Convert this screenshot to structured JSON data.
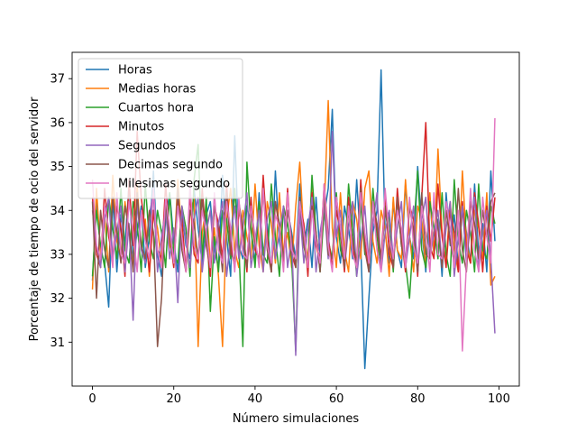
{
  "chart_data": {
    "type": "line",
    "xlabel": "Número simulaciones",
    "ylabel": "Porcentaje de tiempo de ocio del servidor",
    "xlim": [
      -5,
      105
    ],
    "ylim": [
      30.0,
      37.6
    ],
    "xticks": [
      0,
      20,
      40,
      60,
      80,
      100
    ],
    "yticks": [
      31,
      32,
      33,
      34,
      35,
      36,
      37
    ],
    "grid": false,
    "legend_position": "top-left",
    "x": [
      0,
      1,
      2,
      3,
      4,
      5,
      6,
      7,
      8,
      9,
      10,
      11,
      12,
      13,
      14,
      15,
      16,
      17,
      18,
      19,
      20,
      21,
      22,
      23,
      24,
      25,
      26,
      27,
      28,
      29,
      30,
      31,
      32,
      33,
      34,
      35,
      36,
      37,
      38,
      39,
      40,
      41,
      42,
      43,
      44,
      45,
      46,
      47,
      48,
      49,
      50,
      51,
      52,
      53,
      54,
      55,
      56,
      57,
      58,
      59,
      60,
      61,
      62,
      63,
      64,
      65,
      66,
      67,
      68,
      69,
      70,
      71,
      72,
      73,
      74,
      75,
      76,
      77,
      78,
      79,
      80,
      81,
      82,
      83,
      84,
      85,
      86,
      87,
      88,
      89,
      90,
      91,
      92,
      93,
      94,
      95,
      96,
      97,
      98,
      99
    ],
    "series": [
      {
        "name": "Horas",
        "color": "#1f77b4",
        "values": [
          32.4,
          34.2,
          33.1,
          32.8,
          31.8,
          34.3,
          32.6,
          33.9,
          33.2,
          34.6,
          32.9,
          33.5,
          34.1,
          32.7,
          33.4,
          34.9,
          33.0,
          32.5,
          33.8,
          34.4,
          33.3,
          32.6,
          34.0,
          33.2,
          32.9,
          34.5,
          33.6,
          32.8,
          33.9,
          34.2,
          33.1,
          32.7,
          34.8,
          33.4,
          32.5,
          35.7,
          33.2,
          32.9,
          34.1,
          33.6,
          32.8,
          34.4,
          33.0,
          33.7,
          32.6,
          34.9,
          33.3,
          32.8,
          34.0,
          33.5,
          32.9,
          34.6,
          33.2,
          33.8,
          32.7,
          34.3,
          33.0,
          33.9,
          34.5,
          36.3,
          33.4,
          32.8,
          34.1,
          33.6,
          32.9,
          34.7,
          33.2,
          30.4,
          32.0,
          33.5,
          34.0,
          37.2,
          33.5,
          32.8,
          34.2,
          33.1,
          32.7,
          34.6,
          33.4,
          32.9,
          35.0,
          33.6,
          32.6,
          34.3,
          33.0,
          33.8,
          32.5,
          34.4,
          33.2,
          33.9,
          32.7,
          34.1,
          33.5,
          32.8,
          34.6,
          33.0,
          33.7,
          32.6,
          34.9,
          33.3
        ]
      },
      {
        "name": "Medias horas",
        "color": "#ff7f0e",
        "values": [
          32.2,
          34.5,
          33.0,
          33.9,
          32.6,
          34.8,
          33.3,
          32.9,
          34.2,
          33.5,
          32.7,
          34.6,
          33.1,
          33.8,
          32.5,
          34.0,
          33.6,
          32.8,
          34.4,
          33.2,
          32.9,
          34.7,
          33.4,
          32.6,
          33.9,
          34.3,
          30.9,
          33.5,
          34.1,
          32.8,
          33.6,
          32.5,
          30.9,
          33.8,
          34.5,
          33.1,
          32.7,
          34.0,
          33.4,
          32.9,
          34.6,
          33.2,
          32.6,
          34.2,
          33.7,
          32.8,
          34.4,
          33.0,
          33.5,
          32.7,
          34.1,
          35.1,
          33.4,
          32.9,
          34.6,
          33.2,
          32.8,
          34.0,
          36.5,
          33.6,
          32.7,
          34.4,
          33.1,
          32.6,
          34.2,
          33.8,
          32.9,
          34.5,
          34.9,
          33.3,
          32.8,
          34.0,
          33.6,
          32.5,
          34.3,
          33.1,
          32.9,
          34.7,
          33.4,
          32.6,
          34.1,
          33.8,
          32.7,
          34.4,
          33.0,
          35.4,
          33.5,
          32.8,
          34.2,
          33.1,
          32.6,
          34.9,
          33.3,
          32.8,
          34.0,
          33.6,
          32.9,
          34.4,
          32.3,
          32.5
        ]
      },
      {
        "name": "Cuartos hora",
        "color": "#2ca02c",
        "values": [
          32.5,
          34.0,
          33.2,
          32.7,
          34.3,
          33.6,
          32.9,
          34.5,
          33.1,
          32.8,
          34.2,
          33.7,
          32.6,
          34.6,
          33.3,
          32.9,
          34.0,
          33.5,
          32.7,
          34.4,
          33.0,
          32.8,
          34.1,
          33.6,
          32.5,
          34.7,
          35.5,
          32.9,
          34.3,
          31.7,
          33.4,
          32.6,
          34.0,
          33.8,
          32.9,
          34.5,
          33.2,
          30.9,
          35.1,
          33.6,
          32.7,
          34.2,
          33.0,
          32.8,
          34.6,
          33.4,
          32.5,
          34.1,
          33.7,
          32.9,
          30.8,
          34.3,
          33.2,
          32.7,
          34.8,
          33.5,
          32.6,
          34.0,
          33.3,
          32.9,
          34.4,
          33.1,
          32.8,
          34.6,
          33.6,
          32.5,
          34.2,
          33.0,
          32.9,
          34.5,
          33.4,
          32.7,
          34.1,
          33.8,
          32.6,
          34.3,
          33.2,
          32.8,
          32.0,
          33.5,
          34.9,
          33.1,
          32.7,
          34.2,
          33.6,
          32.9,
          34.4,
          33.0,
          32.5,
          34.7,
          33.3,
          32.8,
          34.0,
          33.5,
          32.6,
          34.6,
          33.1,
          32.9,
          34.1,
          33.7
        ]
      },
      {
        "name": "Minutos",
        "color": "#d62728",
        "values": [
          34.3,
          33.0,
          32.7,
          34.5,
          33.4,
          32.9,
          34.1,
          33.6,
          32.5,
          34.7,
          33.2,
          35.8,
          34.3,
          33.5,
          32.6,
          34.0,
          33.1,
          32.9,
          34.6,
          33.4,
          32.7,
          34.2,
          33.8,
          32.6,
          34.4,
          33.0,
          32.8,
          34.5,
          33.3,
          32.5,
          34.1,
          33.7,
          32.9,
          34.6,
          33.2,
          32.7,
          34.0,
          33.5,
          32.6,
          34.3,
          33.1,
          32.9,
          34.8,
          33.4,
          32.6,
          34.2,
          33.6,
          32.8,
          34.5,
          33.0,
          32.7,
          34.1,
          33.7,
          32.5,
          34.4,
          33.2,
          32.9,
          34.6,
          33.4,
          32.7,
          34.0,
          33.5,
          32.6,
          34.3,
          33.1,
          32.8,
          34.7,
          33.3,
          32.6,
          34.2,
          33.6,
          32.9,
          34.4,
          33.0,
          32.7,
          34.5,
          33.4,
          32.6,
          34.1,
          33.8,
          32.5,
          34.3,
          36.0,
          33.2,
          32.9,
          34.6,
          33.4,
          32.7,
          34.0,
          33.5,
          32.6,
          34.2,
          33.1,
          32.8,
          34.4,
          33.7,
          32.6,
          34.1,
          33.3,
          34.3
        ]
      },
      {
        "name": "Segundos",
        "color": "#9467bd",
        "values": [
          34.0,
          33.2,
          32.7,
          33.8,
          34.3,
          32.9,
          33.5,
          34.1,
          32.6,
          33.7,
          31.5,
          34.2,
          33.1,
          32.8,
          33.9,
          34.4,
          32.6,
          33.4,
          34.0,
          32.9,
          33.6,
          31.9,
          34.1,
          33.3,
          32.7,
          33.8,
          34.3,
          32.6,
          33.5,
          34.0,
          32.8,
          33.7,
          34.2,
          32.5,
          33.4,
          34.1,
          32.9,
          33.6,
          34.4,
          32.7,
          33.3,
          34.0,
          32.6,
          33.8,
          34.2,
          32.9,
          33.5,
          34.1,
          32.7,
          33.4,
          30.7,
          34.0,
          32.8,
          33.6,
          34.3,
          32.6,
          33.5,
          34.1,
          32.9,
          35.8,
          33.4,
          34.0,
          32.7,
          33.6,
          34.2,
          32.5,
          33.3,
          34.1,
          32.8,
          33.7,
          34.4,
          32.6,
          33.5,
          34.0,
          32.9,
          33.6,
          34.2,
          32.7,
          33.4,
          34.1,
          32.6,
          33.8,
          34.3,
          32.9,
          33.5,
          34.0,
          32.7,
          33.6,
          34.2,
          32.5,
          33.4,
          34.1,
          32.8,
          33.7,
          34.3,
          32.6,
          33.5,
          34.0,
          32.9,
          31.2
        ]
      },
      {
        "name": "Decimas segundo",
        "color": "#8c564b",
        "values": [
          34.2,
          32.0,
          34.0,
          33.1,
          32.7,
          34.3,
          33.5,
          32.8,
          34.1,
          33.6,
          32.6,
          34.4,
          33.2,
          32.9,
          34.0,
          33.5,
          30.9,
          32.0,
          34.2,
          33.4,
          32.8,
          34.5,
          33.1,
          32.6,
          34.0,
          33.7,
          32.9,
          34.3,
          33.2,
          32.7,
          34.1,
          33.5,
          32.6,
          34.4,
          33.0,
          32.9,
          34.2,
          33.6,
          32.7,
          34.0,
          33.3,
          32.8,
          34.5,
          33.1,
          32.6,
          34.2,
          33.7,
          32.9,
          34.0,
          33.4,
          32.7,
          34.3,
          33.2,
          32.8,
          34.1,
          33.5,
          32.6,
          34.4,
          33.0,
          32.9,
          34.2,
          33.6,
          32.7,
          34.0,
          33.3,
          32.8,
          34.5,
          33.1,
          32.6,
          34.2,
          33.7,
          32.9,
          34.0,
          33.4,
          32.7,
          34.3,
          33.2,
          32.8,
          34.1,
          33.5,
          32.6,
          34.4,
          33.0,
          32.9,
          34.2,
          33.6,
          32.7,
          34.0,
          33.3,
          32.8,
          34.5,
          33.1,
          32.6,
          34.2,
          33.7,
          32.9,
          34.0,
          33.4,
          34.2,
          34.4
        ]
      },
      {
        "name": "Milesimas segundo",
        "color": "#e377c2",
        "values": [
          34.7,
          33.2,
          32.9,
          34.1,
          33.6,
          32.7,
          34.4,
          33.0,
          32.8,
          34.2,
          33.5,
          32.6,
          34.0,
          33.3,
          32.9,
          34.5,
          33.1,
          32.7,
          34.3,
          33.6,
          32.8,
          34.1,
          33.4,
          32.6,
          34.6,
          33.2,
          32.9,
          34.0,
          33.5,
          32.7,
          34.4,
          33.1,
          32.8,
          34.2,
          33.6,
          32.6,
          34.3,
          33.0,
          32.9,
          34.1,
          33.4,
          32.7,
          34.5,
          33.2,
          32.8,
          33.9,
          33.6,
          32.6,
          34.4,
          33.1,
          32.9,
          34.2,
          33.5,
          32.7,
          34.0,
          33.3,
          32.8,
          34.6,
          33.2,
          32.6,
          34.3,
          33.6,
          32.9,
          34.1,
          33.0,
          32.7,
          34.4,
          33.5,
          32.8,
          34.2,
          33.1,
          32.6,
          34.5,
          33.4,
          32.9,
          34.0,
          33.6,
          32.7,
          34.3,
          33.2,
          32.8,
          34.1,
          33.5,
          32.6,
          34.4,
          33.0,
          32.9,
          34.2,
          33.6,
          32.7,
          34.0,
          30.8,
          32.8,
          34.5,
          33.1,
          32.6,
          34.3,
          33.4,
          32.8,
          36.1
        ]
      }
    ]
  }
}
